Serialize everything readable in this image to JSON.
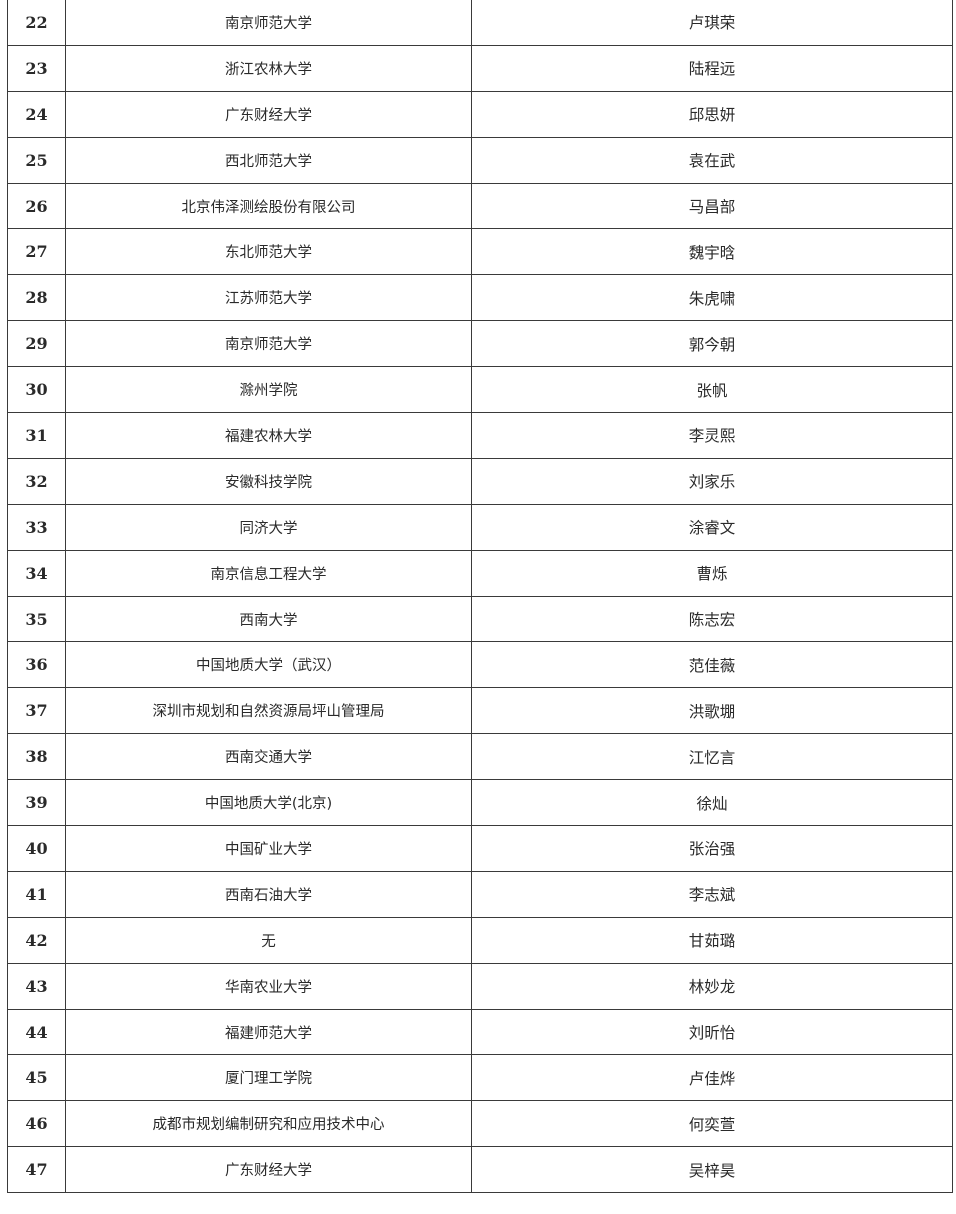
{
  "rows": [
    {
      "no": "22",
      "org": "南京师范大学",
      "name": "卢琪荣"
    },
    {
      "no": "23",
      "org": "浙江农林大学",
      "name": "陆程远"
    },
    {
      "no": "24",
      "org": "广东财经大学",
      "name": "邱思妍"
    },
    {
      "no": "25",
      "org": "西北师范大学",
      "name": "袁在武"
    },
    {
      "no": "26",
      "org": "北京伟泽测绘股份有限公司",
      "name": "马昌部"
    },
    {
      "no": "27",
      "org": "东北师范大学",
      "name": "魏宇晗"
    },
    {
      "no": "28",
      "org": "江苏师范大学",
      "name": "朱虎啸"
    },
    {
      "no": "29",
      "org": "南京师范大学",
      "name": "郭今朝"
    },
    {
      "no": "30",
      "org": "滁州学院",
      "name": "张帆"
    },
    {
      "no": "31",
      "org": "福建农林大学",
      "name": "李灵熙"
    },
    {
      "no": "32",
      "org": "安徽科技学院",
      "name": "刘家乐"
    },
    {
      "no": "33",
      "org": "同济大学",
      "name": "涂睿文"
    },
    {
      "no": "34",
      "org": "南京信息工程大学",
      "name": "曹烁"
    },
    {
      "no": "35",
      "org": "西南大学",
      "name": "陈志宏"
    },
    {
      "no": "36",
      "org": "中国地质大学（武汉）",
      "name": "范佳薇"
    },
    {
      "no": "37",
      "org": "深圳市规划和自然资源局坪山管理局",
      "name": "洪歌堋"
    },
    {
      "no": "38",
      "org": "西南交通大学",
      "name": "江忆言"
    },
    {
      "no": "39",
      "org": "中国地质大学(北京)",
      "name": "徐灿"
    },
    {
      "no": "40",
      "org": "中国矿业大学",
      "name": "张治强"
    },
    {
      "no": "41",
      "org": "西南石油大学",
      "name": "李志斌"
    },
    {
      "no": "42",
      "org": "无",
      "name": "甘茹璐"
    },
    {
      "no": "43",
      "org": "华南农业大学",
      "name": "林妙龙"
    },
    {
      "no": "44",
      "org": "福建师范大学",
      "name": "刘昕怡"
    },
    {
      "no": "45",
      "org": "厦门理工学院",
      "name": "卢佳烨"
    },
    {
      "no": "46",
      "org": "成都市规划编制研究和应用技术中心",
      "name": "何奕萱"
    },
    {
      "no": "47",
      "org": "广东财经大学",
      "name": "吴梓昊"
    }
  ]
}
